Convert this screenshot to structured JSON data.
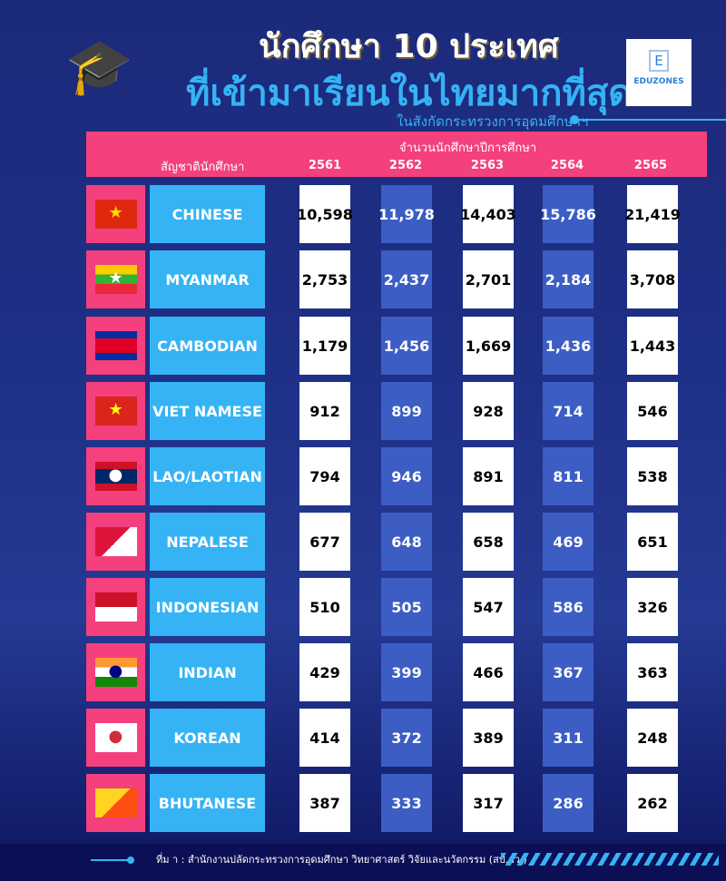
{
  "title_line1": "นักศึกษา 10 ประเทศ",
  "title_line2": "ที่เข้ามาเรียนในไทยมากที่สุด",
  "subtitle": "ในสังกัดกระทรวงการอุดมศึกษาฯ",
  "logo": {
    "letter": "E",
    "name": "EDUZONES"
  },
  "table": {
    "group_header": "จำนวนนักศึกษาปีการศึกษา",
    "nationality_header": "สัญชาตินักศึกษา",
    "years": [
      "2561",
      "2562",
      "2563",
      "2564",
      "2565"
    ],
    "rows": [
      {
        "nationality": "CHINESE",
        "values": [
          "10,598",
          "11,978",
          "14,403",
          "15,786",
          "21,419"
        ]
      },
      {
        "nationality": "MYANMAR",
        "values": [
          "2,753",
          "2,437",
          "2,701",
          "2,184",
          "3,708"
        ]
      },
      {
        "nationality": "CAMBODIAN",
        "values": [
          "1,179",
          "1,456",
          "1,669",
          "1,436",
          "1,443"
        ]
      },
      {
        "nationality": "VIET NAMESE",
        "values": [
          "912",
          "899",
          "928",
          "714",
          "546"
        ]
      },
      {
        "nationality": "LAO/LAOTIAN",
        "values": [
          "794",
          "946",
          "891",
          "811",
          "538"
        ]
      },
      {
        "nationality": "NEPALESE",
        "values": [
          "677",
          "648",
          "658",
          "469",
          "651"
        ]
      },
      {
        "nationality": "INDONESIAN",
        "values": [
          "510",
          "505",
          "547",
          "586",
          "326"
        ]
      },
      {
        "nationality": "INDIAN",
        "values": [
          "429",
          "399",
          "466",
          "367",
          "363"
        ]
      },
      {
        "nationality": "KOREAN",
        "values": [
          "414",
          "372",
          "389",
          "311",
          "248"
        ]
      },
      {
        "nationality": "BHUTANESE",
        "values": [
          "387",
          "333",
          "317",
          "286",
          "262"
        ]
      }
    ]
  },
  "source": "ที่ม า : สำนักงานปลัดกระทรวงการอุดมศึกษา วิทยาศาสตร์ วิจัยและนวัตกรรม (สป.อว.)",
  "colors": {
    "pink": "#f4407c",
    "cyan": "#35b3f5",
    "blue_cell": "#3c5dc4",
    "background": "#1e2f86"
  }
}
